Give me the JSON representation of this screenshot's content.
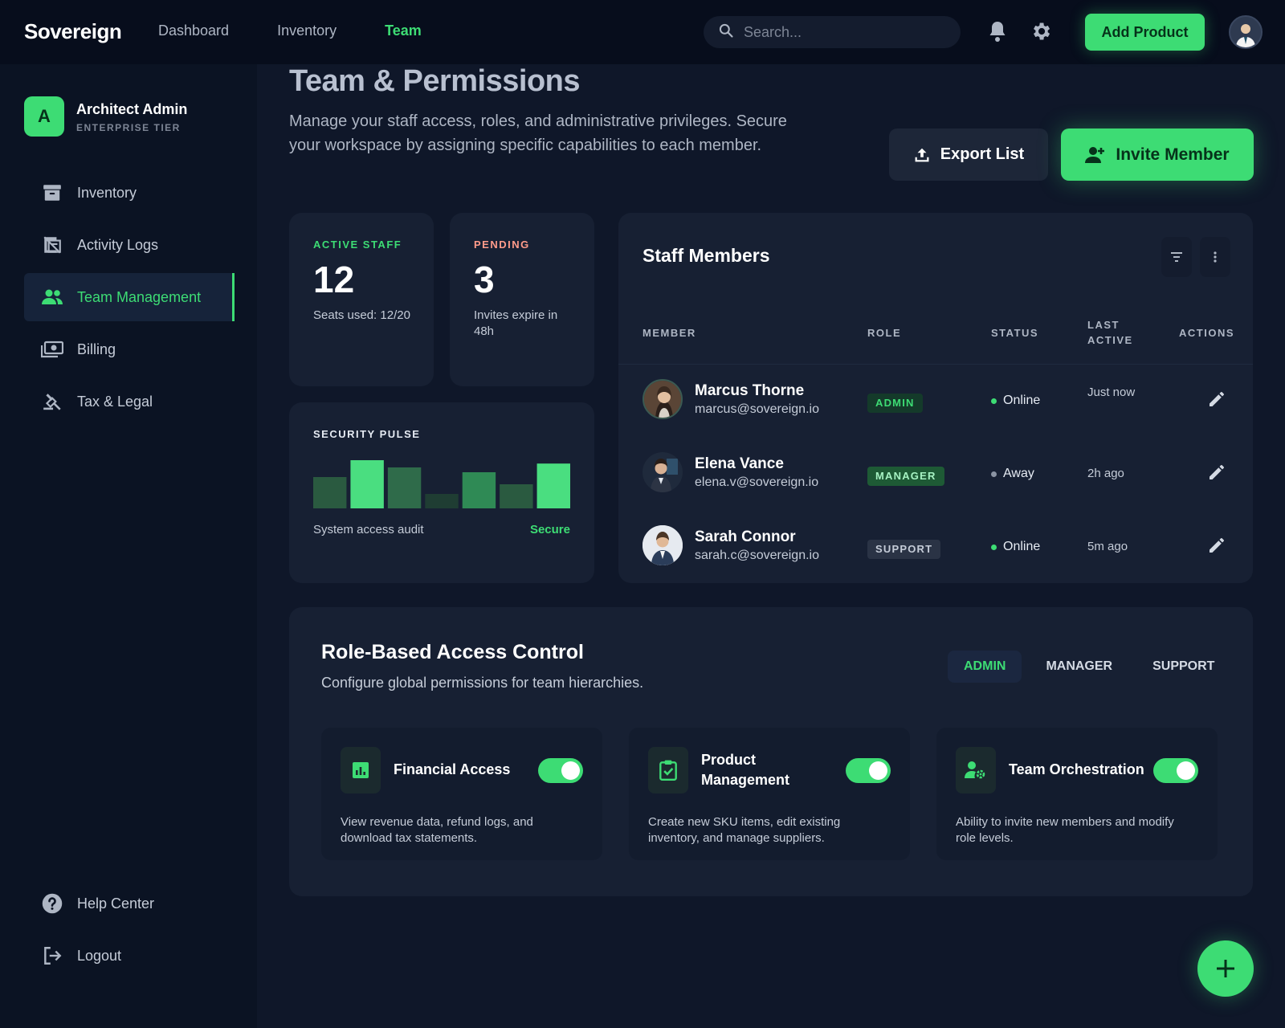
{
  "topbar": {
    "brand": "Sovereign",
    "nav": [
      "Dashboard",
      "Inventory",
      "Team"
    ],
    "active_nav": "Team",
    "search_placeholder": "Search...",
    "add_product_label": "Add Product"
  },
  "sidebar": {
    "org_initial": "A",
    "org_name": "Architect Admin",
    "org_tier": "ENTERPRISE TIER",
    "items": [
      {
        "label": "Inventory",
        "icon": "archive-icon"
      },
      {
        "label": "Activity Logs",
        "icon": "receipt-log-icon"
      },
      {
        "label": "Team Management",
        "icon": "people-icon",
        "active": true
      },
      {
        "label": "Billing",
        "icon": "money-icon"
      },
      {
        "label": "Tax & Legal",
        "icon": "gavel-icon"
      }
    ],
    "footer": [
      {
        "label": "Help Center",
        "icon": "help-icon"
      },
      {
        "label": "Logout",
        "icon": "logout-icon"
      }
    ]
  },
  "header": {
    "title": "Team & Permissions",
    "subtitle": "Manage your staff access, roles, and administrative privileges. Secure your workspace by assigning specific capabilities to each member.",
    "export_label": "Export List",
    "invite_label": "Invite Member"
  },
  "stats": {
    "active": {
      "label": "ACTIVE STAFF",
      "value": "12",
      "desc": "Seats used: 12/20"
    },
    "pending": {
      "label": "PENDING",
      "value": "3",
      "desc": "Invites expire in 48h"
    }
  },
  "security_pulse": {
    "title": "SECURITY PULSE",
    "footer": "System access audit",
    "status": "Secure",
    "levels": [
      0.65,
      1.0,
      0.85,
      0.3,
      0.75,
      0.5,
      0.93
    ],
    "highlight": [
      false,
      true,
      false,
      false,
      false,
      false,
      true
    ]
  },
  "staff": {
    "title": "Staff Members",
    "columns": {
      "member": "MEMBER",
      "role": "ROLE",
      "status": "STATUS",
      "last_active": "LAST ACTIVE",
      "actions": "ACTIONS"
    },
    "rows": [
      {
        "name": "Marcus Thorne",
        "email": "marcus@sovereign.io",
        "role": "ADMIN",
        "status": "Online",
        "last_active": "Just now"
      },
      {
        "name": "Elena Vance",
        "email": "elena.v@sovereign.io",
        "role": "MANAGER",
        "status": "Away",
        "last_active": "2h ago"
      },
      {
        "name": "Sarah Connor",
        "email": "sarah.c@sovereign.io",
        "role": "SUPPORT",
        "status": "Online",
        "last_active": "5m ago"
      }
    ]
  },
  "rbac": {
    "title": "Role-Based Access Control",
    "subtitle": "Configure global permissions for team hierarchies.",
    "tabs": [
      "ADMIN",
      "MANAGER",
      "SUPPORT"
    ],
    "active_tab": "ADMIN",
    "permissions": [
      {
        "title": "Financial Access",
        "desc": "View revenue data, refund logs, and download tax statements.",
        "enabled": true,
        "icon": "chart-icon"
      },
      {
        "title": "Product Management",
        "desc": "Create new SKU items, edit existing inventory, and manage suppliers.",
        "enabled": true,
        "icon": "clipboard-check-icon"
      },
      {
        "title": "Team Orchestration",
        "desc": "Ability to invite new members and modify role levels.",
        "enabled": true,
        "icon": "user-gear-icon"
      }
    ]
  },
  "colors": {
    "accent": "#3ddc74",
    "pending": "#ff9b8a",
    "background": "#0f1729",
    "card": "#172033"
  }
}
